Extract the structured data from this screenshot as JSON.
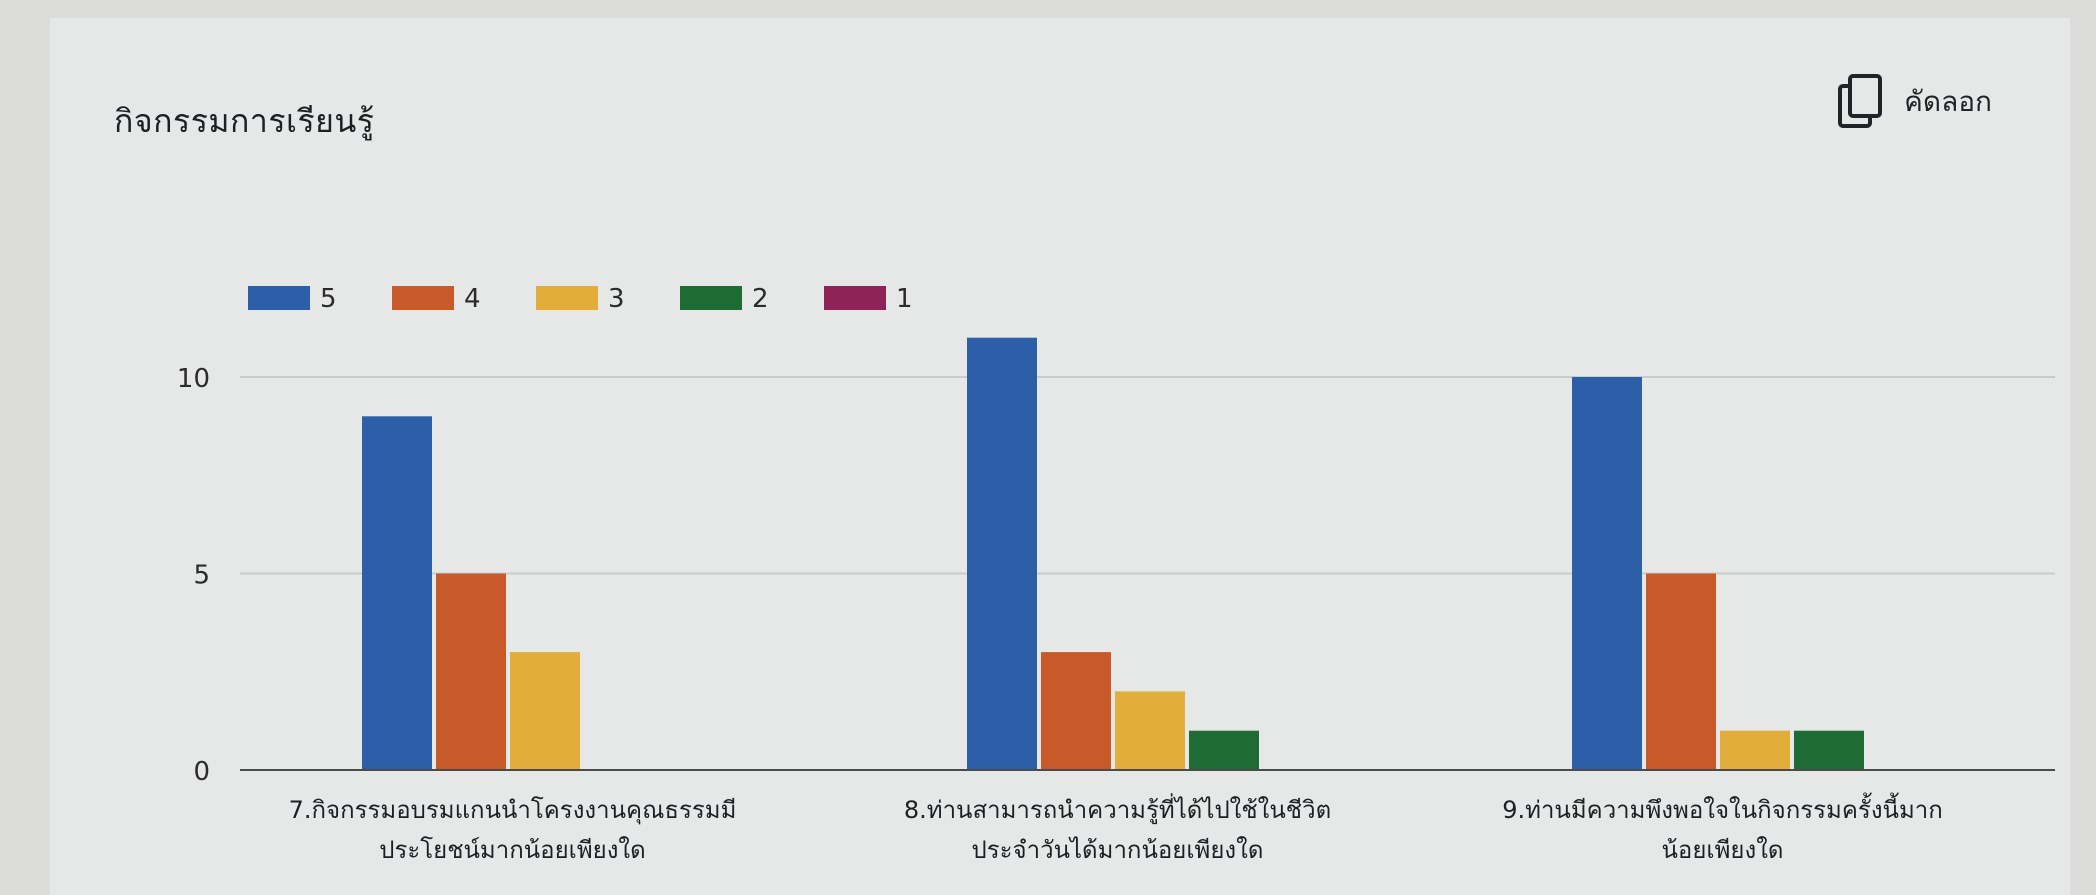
{
  "card": {
    "title": "กิจกรรมการเรียนรู้",
    "copy_label": "คัดลอก",
    "copy_icon": "copy-icon"
  },
  "chart_data": {
    "type": "bar",
    "categories": [
      [
        "7.กิจกรรมอบรมแกนนำโครงงานคุณธรรมมี",
        "ประโยชน์มากน้อยเพียงใด"
      ],
      [
        "8.ท่านสามารถนำความรู้ที่ได้ไปใช้ในชีวิต",
        "ประจำวันได้มากน้อยเพียงใด"
      ],
      [
        "9.ท่านมีความพึงพอใจในกิจกรรมครั้งนี้มาก",
        "น้อยเพียงใด"
      ]
    ],
    "series": [
      {
        "name": "5",
        "values": [
          9,
          11,
          10
        ],
        "color": "#2c5fa8"
      },
      {
        "name": "4",
        "values": [
          5,
          3,
          5
        ],
        "color": "#c85a2a"
      },
      {
        "name": "3",
        "values": [
          3,
          2,
          1
        ],
        "color": "#e2ad3a"
      },
      {
        "name": "2",
        "values": [
          0,
          1,
          1
        ],
        "color": "#1f6b35"
      },
      {
        "name": "1",
        "values": [
          0,
          0,
          0
        ],
        "color": "#8e2357"
      }
    ],
    "yticks": [
      0,
      5,
      10
    ],
    "ylim": [
      0,
      11
    ],
    "legend": "top-left",
    "grid": true
  }
}
